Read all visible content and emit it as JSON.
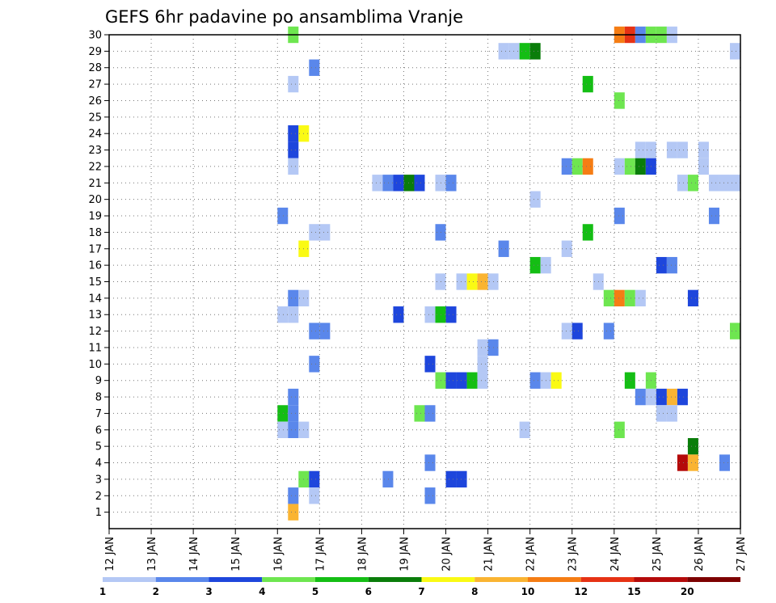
{
  "chart_data": {
    "type": "heatmap",
    "title": "GEFS 6hr padavine po ansamblima Vranje",
    "xlabel": "",
    "ylabel": "",
    "x_tick_labels": [
      "12 JAN",
      "13 JAN",
      "14 JAN",
      "15 JAN",
      "16 JAN",
      "17 JAN",
      "18 JAN",
      "19 JAN",
      "20 JAN",
      "21 JAN",
      "22 JAN",
      "23 JAN",
      "24 JAN",
      "25 JAN",
      "26 JAN",
      "27 JAN"
    ],
    "x_unit": "days since 12 JAN 00z",
    "xlim": [
      0,
      15
    ],
    "ylim": [
      0,
      30
    ],
    "y_ticks": [
      1,
      2,
      3,
      4,
      5,
      6,
      7,
      8,
      9,
      10,
      11,
      12,
      13,
      14,
      15,
      16,
      17,
      18,
      19,
      20,
      21,
      22,
      23,
      24,
      25,
      26,
      27,
      28,
      29,
      30
    ],
    "grid": "dotted",
    "legend": "bottom",
    "color_levels": [
      {
        "label": "1",
        "color": "#b4c8f5"
      },
      {
        "label": "2",
        "color": "#5a87eb"
      },
      {
        "label": "3",
        "color": "#1e46dc"
      },
      {
        "label": "4",
        "color": "#6ee650"
      },
      {
        "label": "5",
        "color": "#14be14"
      },
      {
        "label": "6",
        "color": "#0a7d0a"
      },
      {
        "label": "7",
        "color": "#fafa14"
      },
      {
        "label": "8",
        "color": "#fab432"
      },
      {
        "label": "10",
        "color": "#f57d14"
      },
      {
        "label": "12",
        "color": "#e63214"
      },
      {
        "label": "15",
        "color": "#b40a0a"
      },
      {
        "label": "20",
        "color": "#7d0000"
      }
    ],
    "cells": [
      {
        "t": 4.25,
        "m": 30,
        "c": 3
      },
      {
        "t": 12.0,
        "m": 30,
        "c": 8
      },
      {
        "t": 12.25,
        "m": 30,
        "c": 9
      },
      {
        "t": 12.5,
        "m": 30,
        "c": 1
      },
      {
        "t": 12.75,
        "m": 30,
        "c": 3
      },
      {
        "t": 13.0,
        "m": 30,
        "c": 3
      },
      {
        "t": 13.25,
        "m": 30,
        "c": 0
      },
      {
        "t": 9.25,
        "m": 29,
        "c": 0
      },
      {
        "t": 9.5,
        "m": 29,
        "c": 0
      },
      {
        "t": 9.75,
        "m": 29,
        "c": 4
      },
      {
        "t": 10.0,
        "m": 29,
        "c": 5
      },
      {
        "t": 14.75,
        "m": 29,
        "c": 0
      },
      {
        "t": 4.75,
        "m": 28,
        "c": 1
      },
      {
        "t": 4.25,
        "m": 27,
        "c": 0
      },
      {
        "t": 11.25,
        "m": 27,
        "c": 4
      },
      {
        "t": 12.0,
        "m": 26,
        "c": 3
      },
      {
        "t": 4.25,
        "m": 24,
        "c": 2
      },
      {
        "t": 4.5,
        "m": 24,
        "c": 6
      },
      {
        "t": 4.25,
        "m": 23,
        "c": 2
      },
      {
        "t": 12.5,
        "m": 23,
        "c": 0
      },
      {
        "t": 12.75,
        "m": 23,
        "c": 0
      },
      {
        "t": 13.25,
        "m": 23,
        "c": 0
      },
      {
        "t": 13.5,
        "m": 23,
        "c": 0
      },
      {
        "t": 14.0,
        "m": 23,
        "c": 0
      },
      {
        "t": 4.25,
        "m": 22,
        "c": 0
      },
      {
        "t": 10.75,
        "m": 22,
        "c": 1
      },
      {
        "t": 11.0,
        "m": 22,
        "c": 3
      },
      {
        "t": 11.25,
        "m": 22,
        "c": 8
      },
      {
        "t": 12.0,
        "m": 22,
        "c": 0
      },
      {
        "t": 12.25,
        "m": 22,
        "c": 3
      },
      {
        "t": 12.5,
        "m": 22,
        "c": 5
      },
      {
        "t": 12.75,
        "m": 22,
        "c": 2
      },
      {
        "t": 14.0,
        "m": 22,
        "c": 0
      },
      {
        "t": 6.25,
        "m": 21,
        "c": 0
      },
      {
        "t": 6.5,
        "m": 21,
        "c": 1
      },
      {
        "t": 6.75,
        "m": 21,
        "c": 2
      },
      {
        "t": 7.0,
        "m": 21,
        "c": 5
      },
      {
        "t": 7.25,
        "m": 21,
        "c": 2
      },
      {
        "t": 7.75,
        "m": 21,
        "c": 0
      },
      {
        "t": 8.0,
        "m": 21,
        "c": 1
      },
      {
        "t": 13.5,
        "m": 21,
        "c": 0
      },
      {
        "t": 13.75,
        "m": 21,
        "c": 3
      },
      {
        "t": 14.25,
        "m": 21,
        "c": 0
      },
      {
        "t": 14.5,
        "m": 21,
        "c": 0
      },
      {
        "t": 14.75,
        "m": 21,
        "c": 0
      },
      {
        "t": 10.0,
        "m": 20,
        "c": 0
      },
      {
        "t": 4.0,
        "m": 19,
        "c": 1
      },
      {
        "t": 12.0,
        "m": 19,
        "c": 1
      },
      {
        "t": 14.25,
        "m": 19,
        "c": 1
      },
      {
        "t": 4.75,
        "m": 18,
        "c": 0
      },
      {
        "t": 5.0,
        "m": 18,
        "c": 0
      },
      {
        "t": 7.75,
        "m": 18,
        "c": 1
      },
      {
        "t": 11.25,
        "m": 18,
        "c": 4
      },
      {
        "t": 4.5,
        "m": 17,
        "c": 6
      },
      {
        "t": 9.25,
        "m": 17,
        "c": 1
      },
      {
        "t": 10.75,
        "m": 17,
        "c": 0
      },
      {
        "t": 10.0,
        "m": 16,
        "c": 4
      },
      {
        "t": 10.25,
        "m": 16,
        "c": 0
      },
      {
        "t": 13.0,
        "m": 16,
        "c": 2
      },
      {
        "t": 13.25,
        "m": 16,
        "c": 1
      },
      {
        "t": 7.75,
        "m": 15,
        "c": 0
      },
      {
        "t": 8.25,
        "m": 15,
        "c": 0
      },
      {
        "t": 8.5,
        "m": 15,
        "c": 6
      },
      {
        "t": 8.75,
        "m": 15,
        "c": 7
      },
      {
        "t": 9.0,
        "m": 15,
        "c": 0
      },
      {
        "t": 11.5,
        "m": 15,
        "c": 0
      },
      {
        "t": 4.25,
        "m": 14,
        "c": 1
      },
      {
        "t": 4.5,
        "m": 14,
        "c": 0
      },
      {
        "t": 11.75,
        "m": 14,
        "c": 3
      },
      {
        "t": 12.0,
        "m": 14,
        "c": 8
      },
      {
        "t": 12.25,
        "m": 14,
        "c": 3
      },
      {
        "t": 12.5,
        "m": 14,
        "c": 0
      },
      {
        "t": 13.75,
        "m": 14,
        "c": 2
      },
      {
        "t": 4.0,
        "m": 13,
        "c": 0
      },
      {
        "t": 4.25,
        "m": 13,
        "c": 0
      },
      {
        "t": 6.75,
        "m": 13,
        "c": 2
      },
      {
        "t": 7.5,
        "m": 13,
        "c": 0
      },
      {
        "t": 7.75,
        "m": 13,
        "c": 4
      },
      {
        "t": 8.0,
        "m": 13,
        "c": 2
      },
      {
        "t": 4.75,
        "m": 12,
        "c": 1
      },
      {
        "t": 5.0,
        "m": 12,
        "c": 1
      },
      {
        "t": 10.75,
        "m": 12,
        "c": 0
      },
      {
        "t": 11.0,
        "m": 12,
        "c": 2
      },
      {
        "t": 11.75,
        "m": 12,
        "c": 1
      },
      {
        "t": 14.75,
        "m": 12,
        "c": 3
      },
      {
        "t": 8.75,
        "m": 11,
        "c": 0
      },
      {
        "t": 9.0,
        "m": 11,
        "c": 1
      },
      {
        "t": 4.75,
        "m": 10,
        "c": 1
      },
      {
        "t": 7.5,
        "m": 10,
        "c": 2
      },
      {
        "t": 8.75,
        "m": 10,
        "c": 0
      },
      {
        "t": 7.75,
        "m": 9,
        "c": 3
      },
      {
        "t": 8.0,
        "m": 9,
        "c": 2
      },
      {
        "t": 8.25,
        "m": 9,
        "c": 2
      },
      {
        "t": 8.5,
        "m": 9,
        "c": 4
      },
      {
        "t": 8.75,
        "m": 9,
        "c": 0
      },
      {
        "t": 10.0,
        "m": 9,
        "c": 1
      },
      {
        "t": 10.25,
        "m": 9,
        "c": 0
      },
      {
        "t": 10.5,
        "m": 9,
        "c": 6
      },
      {
        "t": 12.25,
        "m": 9,
        "c": 4
      },
      {
        "t": 12.75,
        "m": 9,
        "c": 3
      },
      {
        "t": 4.25,
        "m": 8,
        "c": 1
      },
      {
        "t": 12.5,
        "m": 8,
        "c": 1
      },
      {
        "t": 12.75,
        "m": 8,
        "c": 0
      },
      {
        "t": 13.0,
        "m": 8,
        "c": 2
      },
      {
        "t": 13.25,
        "m": 8,
        "c": 7
      },
      {
        "t": 13.5,
        "m": 8,
        "c": 2
      },
      {
        "t": 4.0,
        "m": 7,
        "c": 4
      },
      {
        "t": 4.25,
        "m": 7,
        "c": 1
      },
      {
        "t": 7.25,
        "m": 7,
        "c": 3
      },
      {
        "t": 7.5,
        "m": 7,
        "c": 1
      },
      {
        "t": 13.0,
        "m": 7,
        "c": 0
      },
      {
        "t": 13.25,
        "m": 7,
        "c": 0
      },
      {
        "t": 4.0,
        "m": 6,
        "c": 0
      },
      {
        "t": 4.25,
        "m": 6,
        "c": 1
      },
      {
        "t": 4.5,
        "m": 6,
        "c": 0
      },
      {
        "t": 9.75,
        "m": 6,
        "c": 0
      },
      {
        "t": 12.0,
        "m": 6,
        "c": 3
      },
      {
        "t": 13.75,
        "m": 5,
        "c": 5
      },
      {
        "t": 7.5,
        "m": 4,
        "c": 1
      },
      {
        "t": 13.5,
        "m": 4,
        "c": 10
      },
      {
        "t": 13.75,
        "m": 4,
        "c": 7
      },
      {
        "t": 14.5,
        "m": 4,
        "c": 1
      },
      {
        "t": 4.5,
        "m": 3,
        "c": 3
      },
      {
        "t": 4.75,
        "m": 3,
        "c": 2
      },
      {
        "t": 6.5,
        "m": 3,
        "c": 1
      },
      {
        "t": 8.0,
        "m": 3,
        "c": 2
      },
      {
        "t": 8.25,
        "m": 3,
        "c": 2
      },
      {
        "t": 4.25,
        "m": 2,
        "c": 1
      },
      {
        "t": 4.75,
        "m": 2,
        "c": 0
      },
      {
        "t": 7.5,
        "m": 2,
        "c": 1
      },
      {
        "t": 4.25,
        "m": 1,
        "c": 7
      }
    ]
  }
}
